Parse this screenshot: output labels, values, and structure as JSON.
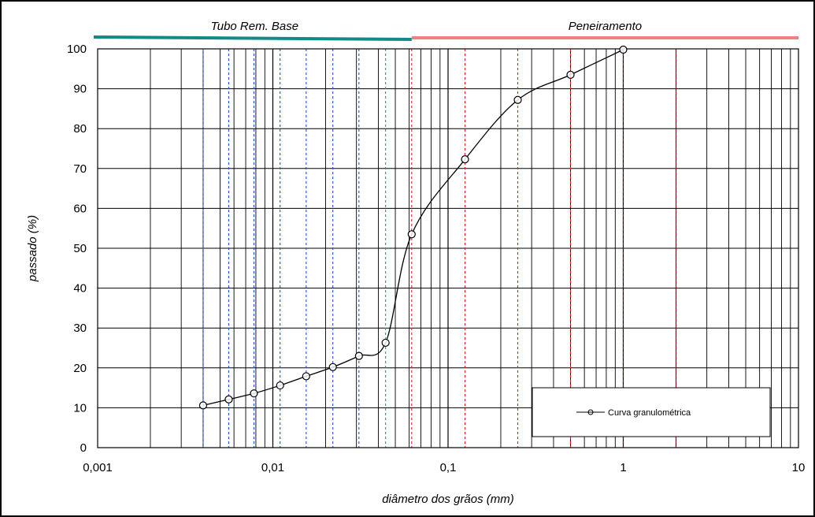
{
  "chart_data": {
    "type": "scatter",
    "x_scale": "log",
    "xlim": [
      0.001,
      10
    ],
    "ylim": [
      0,
      100
    ],
    "grid": true,
    "xlabel": "diâmetro dos grãos  (mm)",
    "ylabel": "passado  (%)",
    "x_tick_labels": [
      "0,001",
      "0,01",
      "0,1",
      "1",
      "10"
    ],
    "y_tick_labels": [
      "0",
      "10",
      "20",
      "30",
      "40",
      "50",
      "60",
      "70",
      "80",
      "90",
      "100"
    ],
    "legend_position": "bottom-right",
    "series": [
      {
        "name": "Curva granulométrica",
        "color": "#000000",
        "points": [
          {
            "x": 0.004,
            "y": 10.6
          },
          {
            "x": 0.0056,
            "y": 12.1
          },
          {
            "x": 0.0078,
            "y": 13.6
          },
          {
            "x": 0.011,
            "y": 15.6
          },
          {
            "x": 0.0155,
            "y": 17.9
          },
          {
            "x": 0.022,
            "y": 20.2
          },
          {
            "x": 0.031,
            "y": 23.0
          },
          {
            "x": 0.044,
            "y": 26.3
          },
          {
            "x": 0.062,
            "y": 53.5
          },
          {
            "x": 0.125,
            "y": 72.3
          },
          {
            "x": 0.25,
            "y": 87.2
          },
          {
            "x": 0.5,
            "y": 93.5
          },
          {
            "x": 1.0,
            "y": 99.8
          }
        ]
      }
    ],
    "bands": [
      {
        "label": "Tubo Rem. Base",
        "x_start": 0.001,
        "x_end": 0.062,
        "color": "#138a87"
      },
      {
        "label": "Peneiramento",
        "x_start": 0.062,
        "x_end": 10,
        "color": "#f08080"
      }
    ],
    "reference_lines": [
      {
        "x": 0.004,
        "color": "#1f4fd8"
      },
      {
        "x": 0.0056,
        "color": "#1f4fd8"
      },
      {
        "x": 0.0078,
        "color": "#1f4fd8"
      },
      {
        "x": 0.011,
        "color": "#1f4fd8"
      },
      {
        "x": 0.0155,
        "color": "#1f4fd8"
      },
      {
        "x": 0.022,
        "color": "#1f4fd8"
      },
      {
        "x": 0.031,
        "color": "#1f4fd8"
      },
      {
        "x": 0.044,
        "color": "#1a9e7a"
      },
      {
        "x": 0.062,
        "color": "#e02020"
      },
      {
        "x": 0.125,
        "color": "#e02020"
      },
      {
        "x": 0.25,
        "color": "#e02020"
      },
      {
        "x": 0.5,
        "color": "#e02020"
      },
      {
        "x": 1.0,
        "color": "#8b0000"
      },
      {
        "x": 2.0,
        "color": "#8b0000"
      }
    ]
  }
}
